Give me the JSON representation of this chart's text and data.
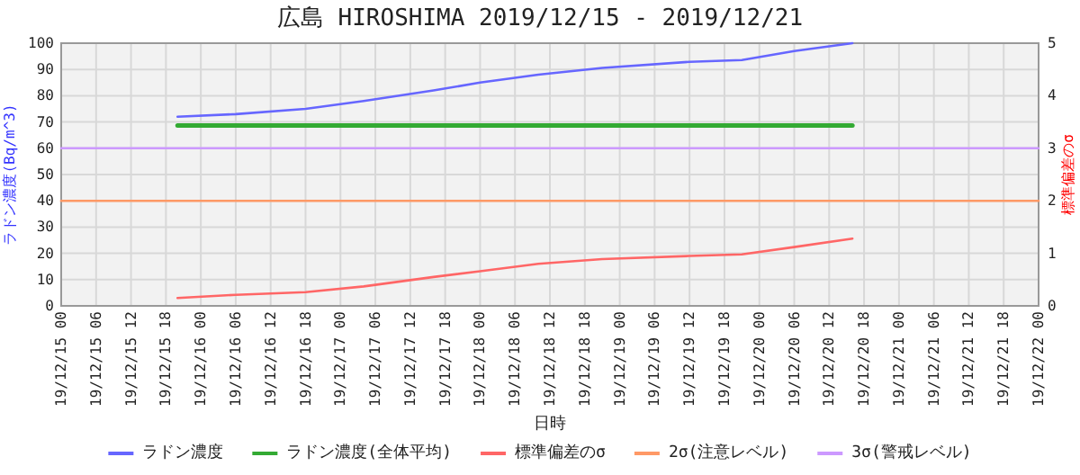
{
  "chart_data": {
    "type": "line",
    "title": "広島 HIROSHIMA 2019/12/15 - 2019/12/21",
    "xlabel": "日時",
    "ylabel": "ラドン濃度(Bq/m^3)",
    "y2label": "標準偏差のσ",
    "xlim": [
      "2019-12-15T00:00",
      "2019-12-22T00:00"
    ],
    "xticks": [
      {
        "value": "2019-12-15T00:00",
        "label": "19/12/15 00"
      },
      {
        "value": "2019-12-15T06:00",
        "label": "19/12/15 06"
      },
      {
        "value": "2019-12-15T12:00",
        "label": "19/12/15 12"
      },
      {
        "value": "2019-12-15T18:00",
        "label": "19/12/15 18"
      },
      {
        "value": "2019-12-16T00:00",
        "label": "19/12/16 00"
      },
      {
        "value": "2019-12-16T06:00",
        "label": "19/12/16 06"
      },
      {
        "value": "2019-12-16T12:00",
        "label": "19/12/16 12"
      },
      {
        "value": "2019-12-16T18:00",
        "label": "19/12/16 18"
      },
      {
        "value": "2019-12-17T00:00",
        "label": "19/12/17 00"
      },
      {
        "value": "2019-12-17T06:00",
        "label": "19/12/17 06"
      },
      {
        "value": "2019-12-17T12:00",
        "label": "19/12/17 12"
      },
      {
        "value": "2019-12-17T18:00",
        "label": "19/12/17 18"
      },
      {
        "value": "2019-12-18T00:00",
        "label": "19/12/18 00"
      },
      {
        "value": "2019-12-18T06:00",
        "label": "19/12/18 06"
      },
      {
        "value": "2019-12-18T12:00",
        "label": "19/12/18 12"
      },
      {
        "value": "2019-12-18T18:00",
        "label": "19/12/18 18"
      },
      {
        "value": "2019-12-19T00:00",
        "label": "19/12/19 00"
      },
      {
        "value": "2019-12-19T06:00",
        "label": "19/12/19 06"
      },
      {
        "value": "2019-12-19T12:00",
        "label": "19/12/19 12"
      },
      {
        "value": "2019-12-19T18:00",
        "label": "19/12/19 18"
      },
      {
        "value": "2019-12-20T00:00",
        "label": "19/12/20 00"
      },
      {
        "value": "2019-12-20T06:00",
        "label": "19/12/20 06"
      },
      {
        "value": "2019-12-20T12:00",
        "label": "19/12/20 12"
      },
      {
        "value": "2019-12-20T18:00",
        "label": "19/12/20 18"
      },
      {
        "value": "2019-12-21T00:00",
        "label": "19/12/21 00"
      },
      {
        "value": "2019-12-21T06:00",
        "label": "19/12/21 06"
      },
      {
        "value": "2019-12-21T12:00",
        "label": "19/12/21 12"
      },
      {
        "value": "2019-12-21T18:00",
        "label": "19/12/21 18"
      },
      {
        "value": "2019-12-22T00:00",
        "label": "19/12/22 00"
      }
    ],
    "ylim": [
      0,
      100
    ],
    "yticks": [
      0,
      10,
      20,
      30,
      40,
      50,
      60,
      70,
      80,
      90,
      100
    ],
    "y2lim": [
      0,
      5
    ],
    "y2ticks": [
      0,
      1,
      2,
      3,
      4,
      5
    ],
    "grid": true,
    "legend": "bottom",
    "series": [
      {
        "name": "ラドン濃度",
        "color": "#6666ff",
        "x": [
          "2019-12-15T20:00",
          "2019-12-16T06:00",
          "2019-12-16T18:00",
          "2019-12-17T04:00",
          "2019-12-17T16:00",
          "2019-12-18T00:00",
          "2019-12-18T10:00",
          "2019-12-18T21:00",
          "2019-12-19T12:00",
          "2019-12-19T21:00",
          "2019-12-20T06:00",
          "2019-12-20T16:00"
        ],
        "values": [
          72,
          73,
          75,
          78,
          82,
          85,
          88,
          90.6,
          92.9,
          93.6,
          97,
          100
        ]
      },
      {
        "name": "ラドン濃度(全体平均)",
        "color": "#33aa33",
        "x": [
          "2019-12-15T20:00",
          "2019-12-20T16:00"
        ],
        "values": [
          68.7,
          68.7
        ]
      },
      {
        "name": "標準偏差のσ",
        "color": "#ff6666",
        "axis": "y2",
        "x": [
          "2019-12-15T20:00",
          "2019-12-16T06:00",
          "2019-12-16T18:00",
          "2019-12-17T04:00",
          "2019-12-17T16:00",
          "2019-12-18T00:00",
          "2019-12-18T10:00",
          "2019-12-18T21:00",
          "2019-12-19T12:00",
          "2019-12-19T21:00",
          "2019-12-20T06:00",
          "2019-12-20T16:00"
        ],
        "values": [
          0.15,
          0.21,
          0.26,
          0.37,
          0.55,
          0.66,
          0.8,
          0.89,
          0.95,
          0.98,
          1.12,
          1.28
        ]
      },
      {
        "name": "2σ(注意レベル)",
        "color": "#ff9966",
        "axis": "y2",
        "x": [
          "2019-12-15T00:00",
          "2019-12-22T00:00"
        ],
        "values": [
          2,
          2
        ]
      },
      {
        "name": "3σ(警戒レベル)",
        "color": "#cc99ff",
        "axis": "y2",
        "x": [
          "2019-12-15T00:00",
          "2019-12-22T00:00"
        ],
        "values": [
          3,
          3
        ]
      }
    ]
  }
}
